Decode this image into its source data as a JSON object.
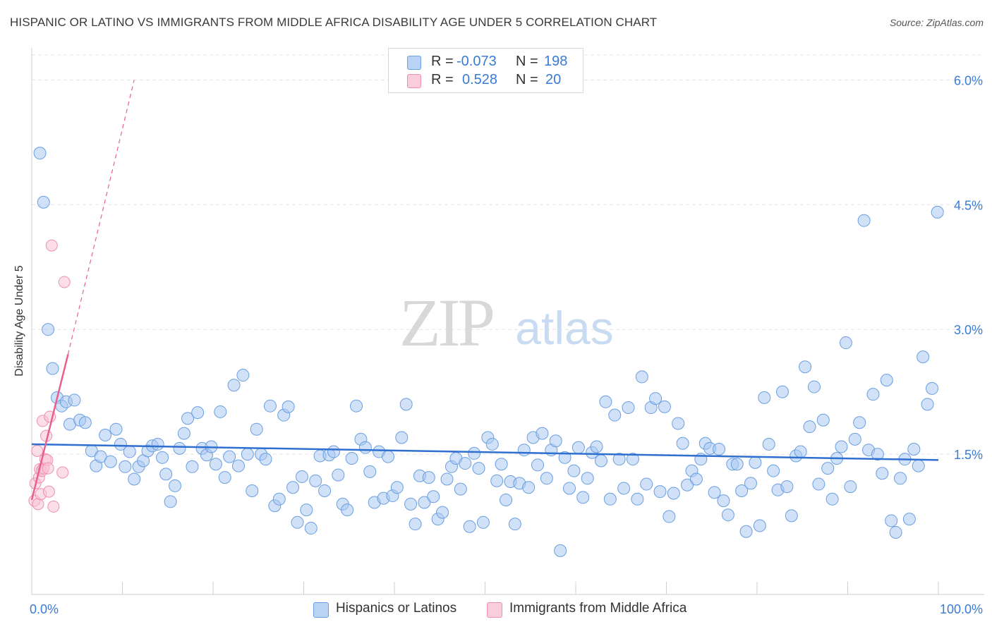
{
  "colors": {
    "blue_fill": "#a9c9f2",
    "blue_stroke": "#6b9fe0",
    "blue_line": "#2f6fd0",
    "pink_fill": "#f7c3d4",
    "pink_stroke": "#ee8fb0",
    "pink_line": "#e8608e",
    "tick_blue": "#3a7bd5",
    "grid": "#e3e3e3"
  },
  "legend": {
    "rows": [
      {
        "r_label": "R =",
        "r_value": "-0.073",
        "n_label": "N =",
        "n_value": "198"
      },
      {
        "r_label": "R =",
        "r_value": "0.528",
        "n_label": "N =",
        "n_value": "20"
      }
    ]
  },
  "chart_data": {
    "type": "scatter",
    "title": "HISPANIC OR LATINO VS IMMIGRANTS FROM MIDDLE AFRICA DISABILITY AGE UNDER 5 CORRELATION CHART",
    "source": "Source: ZipAtlas.com",
    "xlabel": "",
    "ylabel": "Disability Age Under 5",
    "xlim": [
      0,
      100
    ],
    "ylim": [
      0,
      6.3
    ],
    "x_tick_labels": [
      "0.0%",
      "100.0%"
    ],
    "y_ticks": [
      1.5,
      3.0,
      4.5,
      6.0
    ],
    "y_tick_labels": [
      "1.5%",
      "3.0%",
      "4.5%",
      "6.0%"
    ],
    "grid": true,
    "watermark": {
      "zip": "ZIP",
      "atlas": "atlas"
    },
    "series": [
      {
        "name": "Hispanics or Latinos",
        "trend": {
          "x": [
            0,
            100
          ],
          "y": [
            1.62,
            1.43
          ]
        },
        "points": [
          [
            0.9,
            5.12
          ],
          [
            1.3,
            4.53
          ],
          [
            1.8,
            3.0
          ],
          [
            2.3,
            2.53
          ],
          [
            2.8,
            2.18
          ],
          [
            3.3,
            2.08
          ],
          [
            3.8,
            2.13
          ],
          [
            4.2,
            1.86
          ],
          [
            4.7,
            2.15
          ],
          [
            5.3,
            1.91
          ],
          [
            5.9,
            1.88
          ],
          [
            6.6,
            1.54
          ],
          [
            7.1,
            1.36
          ],
          [
            7.6,
            1.47
          ],
          [
            8.1,
            1.73
          ],
          [
            8.7,
            1.41
          ],
          [
            9.3,
            1.8
          ],
          [
            9.8,
            1.62
          ],
          [
            10.3,
            1.35
          ],
          [
            10.8,
            1.53
          ],
          [
            11.3,
            1.2
          ],
          [
            11.8,
            1.35
          ],
          [
            12.3,
            1.42
          ],
          [
            12.8,
            1.54
          ],
          [
            13.3,
            1.6
          ],
          [
            13.9,
            1.62
          ],
          [
            14.4,
            1.46
          ],
          [
            14.8,
            1.26
          ],
          [
            15.3,
            0.93
          ],
          [
            15.8,
            1.12
          ],
          [
            16.3,
            1.57
          ],
          [
            16.8,
            1.75
          ],
          [
            17.2,
            1.93
          ],
          [
            17.7,
            1.35
          ],
          [
            18.3,
            2.0
          ],
          [
            18.8,
            1.57
          ],
          [
            19.3,
            1.49
          ],
          [
            19.8,
            1.59
          ],
          [
            20.3,
            1.38
          ],
          [
            20.8,
            2.01
          ],
          [
            21.3,
            1.22
          ],
          [
            21.8,
            1.47
          ],
          [
            22.3,
            2.33
          ],
          [
            22.8,
            1.36
          ],
          [
            23.3,
            2.45
          ],
          [
            23.8,
            1.5
          ],
          [
            24.3,
            1.06
          ],
          [
            24.8,
            1.8
          ],
          [
            25.3,
            1.5
          ],
          [
            25.8,
            1.44
          ],
          [
            26.3,
            2.08
          ],
          [
            26.8,
            0.88
          ],
          [
            27.3,
            0.96
          ],
          [
            27.8,
            1.97
          ],
          [
            28.3,
            2.07
          ],
          [
            28.8,
            1.1
          ],
          [
            29.3,
            0.68
          ],
          [
            29.8,
            1.23
          ],
          [
            30.3,
            0.83
          ],
          [
            30.8,
            0.61
          ],
          [
            31.3,
            1.18
          ],
          [
            31.8,
            1.48
          ],
          [
            32.3,
            1.06
          ],
          [
            32.8,
            1.49
          ],
          [
            33.3,
            1.53
          ],
          [
            33.8,
            1.25
          ],
          [
            34.3,
            0.9
          ],
          [
            34.8,
            0.83
          ],
          [
            35.3,
            1.45
          ],
          [
            35.8,
            2.08
          ],
          [
            36.3,
            1.68
          ],
          [
            36.8,
            1.58
          ],
          [
            37.3,
            1.29
          ],
          [
            37.8,
            0.92
          ],
          [
            38.3,
            1.53
          ],
          [
            38.8,
            0.97
          ],
          [
            39.3,
            1.47
          ],
          [
            39.8,
            1.0
          ],
          [
            40.3,
            1.1
          ],
          [
            40.8,
            1.7
          ],
          [
            41.3,
            2.1
          ],
          [
            41.8,
            0.9
          ],
          [
            42.3,
            0.66
          ],
          [
            42.8,
            1.24
          ],
          [
            43.3,
            0.92
          ],
          [
            43.8,
            1.22
          ],
          [
            44.3,
            0.99
          ],
          [
            44.8,
            0.72
          ],
          [
            45.3,
            0.8
          ],
          [
            45.8,
            1.2
          ],
          [
            46.3,
            1.35
          ],
          [
            46.8,
            1.45
          ],
          [
            47.3,
            1.08
          ],
          [
            47.8,
            1.39
          ],
          [
            48.3,
            0.63
          ],
          [
            48.8,
            1.51
          ],
          [
            49.3,
            1.33
          ],
          [
            49.8,
            0.68
          ],
          [
            50.3,
            1.7
          ],
          [
            50.8,
            1.62
          ],
          [
            51.3,
            1.18
          ],
          [
            51.8,
            1.38
          ],
          [
            52.3,
            0.95
          ],
          [
            52.8,
            1.17
          ],
          [
            53.3,
            0.66
          ],
          [
            53.8,
            1.15
          ],
          [
            54.3,
            1.55
          ],
          [
            54.8,
            1.1
          ],
          [
            55.3,
            1.7
          ],
          [
            55.8,
            1.37
          ],
          [
            56.3,
            1.75
          ],
          [
            56.8,
            1.21
          ],
          [
            57.3,
            1.55
          ],
          [
            57.8,
            1.66
          ],
          [
            58.3,
            0.34
          ],
          [
            58.8,
            1.46
          ],
          [
            59.3,
            1.09
          ],
          [
            59.8,
            1.3
          ],
          [
            60.3,
            1.58
          ],
          [
            60.8,
            0.98
          ],
          [
            61.3,
            1.21
          ],
          [
            61.8,
            1.52
          ],
          [
            62.3,
            1.59
          ],
          [
            62.8,
            1.42
          ],
          [
            63.3,
            2.13
          ],
          [
            63.8,
            0.96
          ],
          [
            64.3,
            1.97
          ],
          [
            64.8,
            1.44
          ],
          [
            65.3,
            1.09
          ],
          [
            65.8,
            2.06
          ],
          [
            66.3,
            1.44
          ],
          [
            66.8,
            0.96
          ],
          [
            67.3,
            2.43
          ],
          [
            67.8,
            1.14
          ],
          [
            68.3,
            2.06
          ],
          [
            68.8,
            2.17
          ],
          [
            69.3,
            1.05
          ],
          [
            69.8,
            2.07
          ],
          [
            70.3,
            0.75
          ],
          [
            70.8,
            1.03
          ],
          [
            71.3,
            1.87
          ],
          [
            71.8,
            1.63
          ],
          [
            72.3,
            1.13
          ],
          [
            72.8,
            1.3
          ],
          [
            73.3,
            1.2
          ],
          [
            73.8,
            1.44
          ],
          [
            74.3,
            1.63
          ],
          [
            74.8,
            1.57
          ],
          [
            75.3,
            1.04
          ],
          [
            75.8,
            1.56
          ],
          [
            76.3,
            0.94
          ],
          [
            76.8,
            0.77
          ],
          [
            77.3,
            1.38
          ],
          [
            77.8,
            1.38
          ],
          [
            78.3,
            1.06
          ],
          [
            78.8,
            0.57
          ],
          [
            79.3,
            1.15
          ],
          [
            79.8,
            1.4
          ],
          [
            80.3,
            0.64
          ],
          [
            80.8,
            2.18
          ],
          [
            81.3,
            1.62
          ],
          [
            81.8,
            1.3
          ],
          [
            82.3,
            1.07
          ],
          [
            82.8,
            2.25
          ],
          [
            83.3,
            1.11
          ],
          [
            83.8,
            0.76
          ],
          [
            84.3,
            1.48
          ],
          [
            84.8,
            1.53
          ],
          [
            85.3,
            2.55
          ],
          [
            85.8,
            1.83
          ],
          [
            86.3,
            2.31
          ],
          [
            86.8,
            1.14
          ],
          [
            87.3,
            1.91
          ],
          [
            87.8,
            1.33
          ],
          [
            88.3,
            0.96
          ],
          [
            88.8,
            1.45
          ],
          [
            89.3,
            1.59
          ],
          [
            89.8,
            2.84
          ],
          [
            90.3,
            1.11
          ],
          [
            90.8,
            1.68
          ],
          [
            91.3,
            1.88
          ],
          [
            91.8,
            4.31
          ],
          [
            92.3,
            1.55
          ],
          [
            92.8,
            2.22
          ],
          [
            93.3,
            1.5
          ],
          [
            93.8,
            1.27
          ],
          [
            94.3,
            2.39
          ],
          [
            94.8,
            0.7
          ],
          [
            95.3,
            0.56
          ],
          [
            95.8,
            1.21
          ],
          [
            96.3,
            1.44
          ],
          [
            96.8,
            0.72
          ],
          [
            97.3,
            1.56
          ],
          [
            97.8,
            1.36
          ],
          [
            98.3,
            2.67
          ],
          [
            98.8,
            2.1
          ],
          [
            99.3,
            2.29
          ],
          [
            99.9,
            4.41
          ]
        ]
      },
      {
        "name": "Immigrants from Middle Africa",
        "trend": {
          "x": [
            0,
            4.0
          ],
          "y": [
            0.95,
            2.7
          ]
        },
        "trend_dashed": {
          "x": [
            4.0,
            11.3
          ],
          "y": [
            2.7,
            6.0
          ]
        },
        "points": [
          [
            0.3,
            0.94
          ],
          [
            0.4,
            1.15
          ],
          [
            0.6,
            1.54
          ],
          [
            0.7,
            0.9
          ],
          [
            0.8,
            1.22
          ],
          [
            0.9,
            1.32
          ],
          [
            1.0,
            1.02
          ],
          [
            1.1,
            1.3
          ],
          [
            1.2,
            1.9
          ],
          [
            1.3,
            1.33
          ],
          [
            1.5,
            1.44
          ],
          [
            1.6,
            1.72
          ],
          [
            1.7,
            1.43
          ],
          [
            1.8,
            1.33
          ],
          [
            1.9,
            1.05
          ],
          [
            2.0,
            1.95
          ],
          [
            2.2,
            4.01
          ],
          [
            2.4,
            0.87
          ],
          [
            3.4,
            1.28
          ],
          [
            3.6,
            3.57
          ]
        ]
      }
    ]
  },
  "bottom_legend": [
    {
      "label": "Hispanics or Latinos"
    },
    {
      "label": "Immigrants from Middle Africa"
    }
  ]
}
